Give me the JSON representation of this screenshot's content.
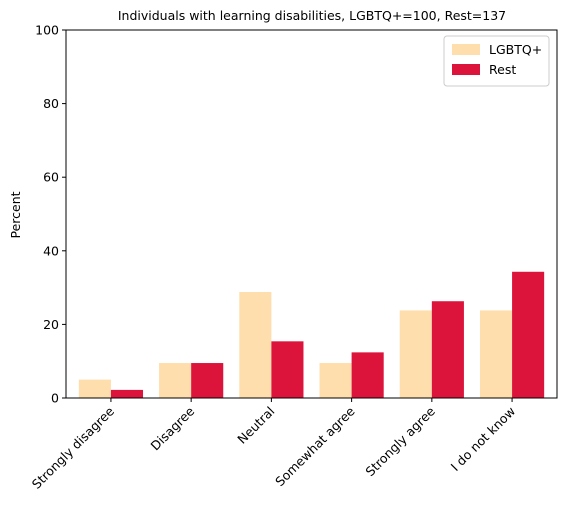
{
  "chart_data": {
    "type": "bar",
    "title": "Individuals with learning disabilities, LGBTQ+=100, Rest=137",
    "xlabel": "",
    "ylabel": "Percent",
    "ylim": [
      0,
      100
    ],
    "yticks": [
      0,
      20,
      40,
      60,
      80,
      100
    ],
    "categories": [
      "Strongly disagree",
      "Disagree",
      "Neutral",
      "Somewhat agree",
      "Strongly agree",
      "I do not know"
    ],
    "series": [
      {
        "name": "LGBTQ+",
        "color": "#ffdead",
        "values": [
          5.0,
          9.5,
          28.8,
          9.5,
          23.8,
          23.8
        ]
      },
      {
        "name": "Rest",
        "color": "#dc143c",
        "values": [
          2.2,
          9.5,
          15.4,
          12.4,
          26.3,
          34.3
        ]
      }
    ],
    "legend": "top-right",
    "grid": false
  }
}
